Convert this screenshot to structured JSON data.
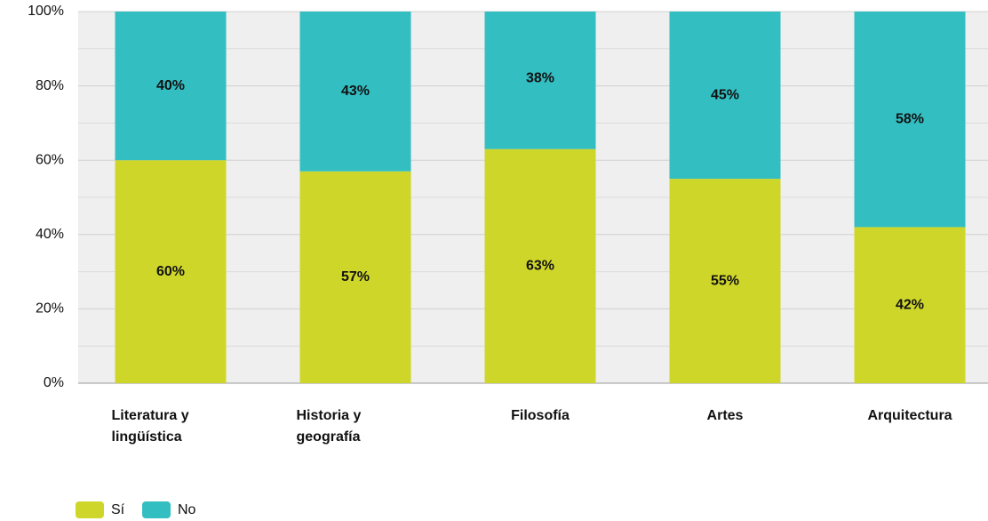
{
  "chart_data": {
    "type": "stacked_bar",
    "categories": [
      "Literatura y lingüística",
      "Historia y geografía",
      "Filosofía",
      "Artes",
      "Arquitectura"
    ],
    "series": [
      {
        "name": "Sí",
        "color": "#cfd62a",
        "values": [
          60,
          57,
          63,
          55,
          42
        ],
        "value_labels": [
          "60%",
          "57%",
          "63%",
          "55%",
          "42%"
        ]
      },
      {
        "name": "No",
        "color": "#33bec2",
        "values": [
          40,
          43,
          38,
          45,
          58
        ],
        "value_labels": [
          "40%",
          "43%",
          "38%",
          "45%",
          "58%"
        ]
      }
    ],
    "ylim": [
      0,
      100
    ],
    "yticks": [
      {
        "value": 0,
        "label": "0%"
      },
      {
        "value": 20,
        "label": "20%"
      },
      {
        "value": 40,
        "label": "40%"
      },
      {
        "value": 60,
        "label": "60%"
      },
      {
        "value": 80,
        "label": "80%"
      },
      {
        "value": 100,
        "label": "100%"
      }
    ],
    "minor_yticks": [
      10,
      30,
      50,
      70,
      90
    ],
    "grid": true,
    "legend": "bottom-left"
  }
}
